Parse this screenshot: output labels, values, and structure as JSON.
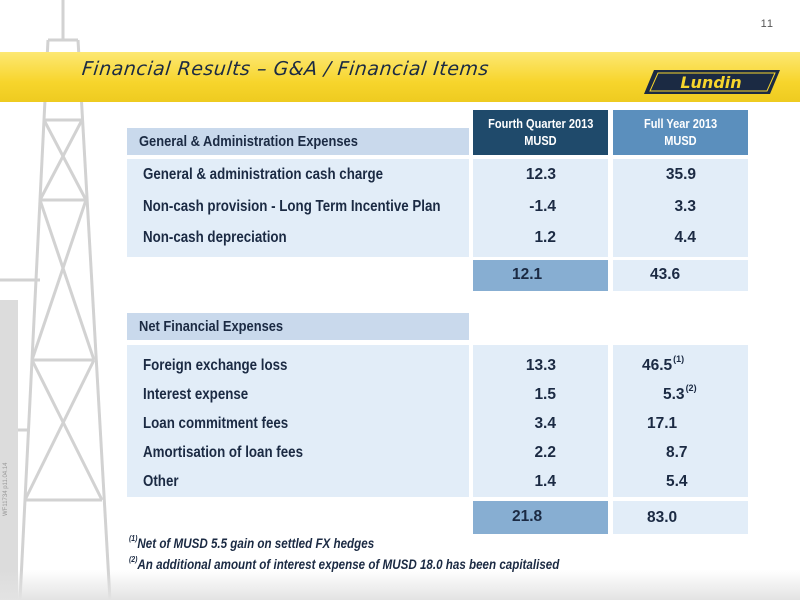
{
  "page_number": "11",
  "side_code": "WF11734 p11.04.14",
  "title": "Financial Results – G&A / Financial Items",
  "logo_text": "Lundin",
  "columns": {
    "q4": {
      "line1": "Fourth Quarter 2013",
      "line2": "MUSD"
    },
    "fy": {
      "line1": "Full Year 2013",
      "line2": "MUSD"
    }
  },
  "ga": {
    "title": "General & Administration Expenses",
    "rows": [
      {
        "label": "General & administration cash charge",
        "q4": "12.3",
        "fy": "35.9",
        "fy_note": ""
      },
      {
        "label": "Non-cash provision - Long Term Incentive Plan",
        "q4": "-1.4",
        "fy": "3.3",
        "fy_note": ""
      },
      {
        "label": "Non-cash depreciation",
        "q4": "1.2",
        "fy": "4.4",
        "fy_note": ""
      }
    ],
    "total": {
      "q4": "12.1",
      "fy": "43.6"
    }
  },
  "nfe": {
    "title": "Net Financial Expenses",
    "rows": [
      {
        "label": "Foreign exchange loss",
        "q4": "13.3",
        "fy": "46.5",
        "fy_note": "(1)"
      },
      {
        "label": "Interest expense",
        "q4": "1.5",
        "fy": "5.3",
        "fy_note": "(2)"
      },
      {
        "label": "Loan commitment fees",
        "q4": "3.4",
        "fy": "17.1",
        "fy_note": ""
      },
      {
        "label": "Amortisation of loan fees",
        "q4": "2.2",
        "fy": "8.7",
        "fy_note": ""
      },
      {
        "label": "Other",
        "q4": "1.4",
        "fy": "5.4",
        "fy_note": ""
      }
    ],
    "total": {
      "q4": "21.8",
      "fy": "83.0"
    }
  },
  "footnotes": [
    {
      "mark": "(1)",
      "text": "Net of MUSD 5.5 gain on settled FX hedges"
    },
    {
      "mark": "(2)",
      "text": "An additional amount of interest expense of MUSD 18.0 has been capitalised"
    }
  ],
  "colors": {
    "banner": "#f7d52c",
    "navy": "#1b2a43",
    "header_dark": "#1f4a6b",
    "header_mid": "#5b8fbd",
    "row_light": "#e2edf8",
    "total": "#87aed2"
  }
}
